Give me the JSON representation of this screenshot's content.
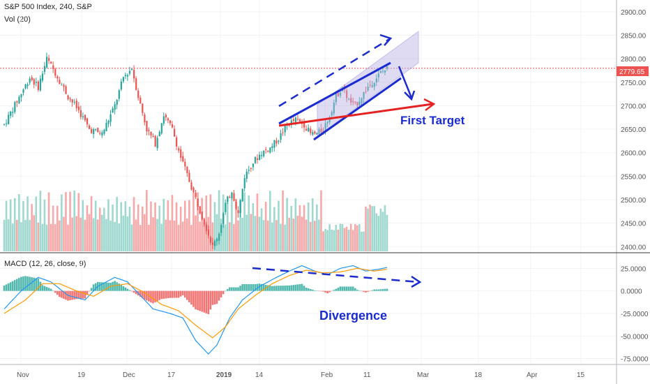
{
  "header": {
    "title": "S&P 500 Index, 240, S&P",
    "volume_label": "Vol (20)",
    "macd_label": "MACD (12, 26, close, 9)"
  },
  "price_tag": "2779.65",
  "annotations": {
    "first_target": "First Target",
    "divergence": "Divergence"
  },
  "colors": {
    "up": "#26a69a",
    "down": "#ef5350",
    "vol_up": "#9fd8cf",
    "vol_down": "#f7a8a8",
    "macd_line": "#2196f3",
    "signal_line": "#ff9800",
    "drawing_blue": "#1a2bd0",
    "drawing_red": "#e52222",
    "channel_fill": "#b7b0e6"
  },
  "chart_data": [
    {
      "type": "candlestick",
      "title": "S&P 500 Index, 240, S&P",
      "y_ticks": [
        "2900.00",
        "2850.00",
        "2800.00",
        "2750.00",
        "2700.00",
        "2650.00",
        "2600.00",
        "2550.00",
        "2500.00",
        "2450.00",
        "2400.00"
      ],
      "ylim": [
        2390,
        2925
      ],
      "x_ticks": [
        "Nov",
        "19",
        "Dec",
        "17",
        "2019",
        "14",
        "Feb",
        "11",
        "Mar",
        "18",
        "Apr",
        "15"
      ],
      "last_price": 2779.65,
      "keypoints_close": [
        [
          0,
          2660
        ],
        [
          6,
          2710
        ],
        [
          12,
          2760
        ],
        [
          16,
          2740
        ],
        [
          20,
          2800
        ],
        [
          24,
          2770
        ],
        [
          30,
          2720
        ],
        [
          35,
          2690
        ],
        [
          40,
          2650
        ],
        [
          46,
          2640
        ],
        [
          52,
          2700
        ],
        [
          56,
          2760
        ],
        [
          60,
          2780
        ],
        [
          63,
          2720
        ],
        [
          67,
          2650
        ],
        [
          71,
          2620
        ],
        [
          75,
          2680
        ],
        [
          79,
          2650
        ],
        [
          83,
          2590
        ],
        [
          87,
          2540
        ],
        [
          91,
          2490
        ],
        [
          95,
          2440
        ],
        [
          98,
          2400
        ],
        [
          101,
          2430
        ],
        [
          104,
          2490
        ],
        [
          107,
          2520
        ],
        [
          110,
          2470
        ],
        [
          113,
          2550
        ],
        [
          117,
          2580
        ],
        [
          121,
          2600
        ],
        [
          125,
          2610
        ],
        [
          129,
          2630
        ],
        [
          133,
          2660
        ],
        [
          137,
          2670
        ],
        [
          141,
          2660
        ],
        [
          144,
          2640
        ],
        [
          147,
          2640
        ],
        [
          150,
          2650
        ],
        [
          153,
          2680
        ],
        [
          156,
          2720
        ],
        [
          159,
          2740
        ],
        [
          162,
          2710
        ],
        [
          165,
          2700
        ],
        [
          168,
          2720
        ],
        [
          171,
          2740
        ],
        [
          174,
          2755
        ],
        [
          177,
          2770
        ],
        [
          180,
          2780
        ]
      ]
    },
    {
      "type": "bar",
      "title": "Vol (20)",
      "note": "volume histogram under price"
    },
    {
      "type": "line",
      "title": "MACD (12, 26, close, 9)",
      "y_ticks": [
        "25.0000",
        "0.0000",
        "-25.0000",
        "-50.0000",
        "-75.0000"
      ],
      "ylim": [
        -80,
        40
      ],
      "series": [
        {
          "name": "MACD",
          "keypoints": [
            [
              0,
              -20
            ],
            [
              8,
              0
            ],
            [
              16,
              15
            ],
            [
              22,
              10
            ],
            [
              30,
              -5
            ],
            [
              38,
              -10
            ],
            [
              44,
              5
            ],
            [
              52,
              15
            ],
            [
              58,
              10
            ],
            [
              64,
              -5
            ],
            [
              70,
              -20
            ],
            [
              78,
              -25
            ],
            [
              84,
              -30
            ],
            [
              90,
              -55
            ],
            [
              96,
              -70
            ],
            [
              100,
              -60
            ],
            [
              106,
              -30
            ],
            [
              112,
              -10
            ],
            [
              120,
              5
            ],
            [
              128,
              15
            ],
            [
              134,
              22
            ],
            [
              140,
              28
            ],
            [
              146,
              22
            ],
            [
              152,
              18
            ],
            [
              158,
              25
            ],
            [
              164,
              28
            ],
            [
              170,
              22
            ],
            [
              176,
              24
            ],
            [
              180,
              26
            ]
          ]
        },
        {
          "name": "Signal",
          "keypoints": [
            [
              0,
              -25
            ],
            [
              10,
              -10
            ],
            [
              18,
              8
            ],
            [
              26,
              8
            ],
            [
              34,
              0
            ],
            [
              42,
              -6
            ],
            [
              50,
              5
            ],
            [
              58,
              8
            ],
            [
              66,
              -2
            ],
            [
              74,
              -15
            ],
            [
              82,
              -22
            ],
            [
              90,
              -38
            ],
            [
              98,
              -52
            ],
            [
              104,
              -40
            ],
            [
              110,
              -20
            ],
            [
              118,
              -5
            ],
            [
              126,
              8
            ],
            [
              134,
              17
            ],
            [
              142,
              23
            ],
            [
              150,
              20
            ],
            [
              158,
              21
            ],
            [
              166,
              25
            ],
            [
              174,
              22
            ],
            [
              180,
              24
            ]
          ]
        }
      ]
    }
  ]
}
